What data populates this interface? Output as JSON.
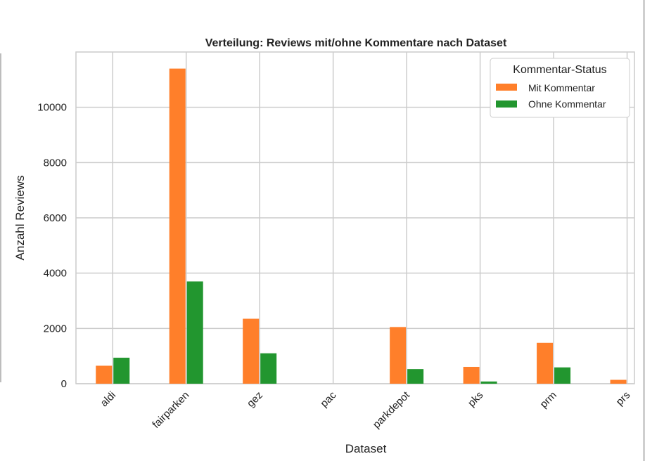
{
  "chart_data": {
    "type": "bar",
    "title": "Verteilung: Reviews mit/ohne Kommentare nach Dataset",
    "xlabel": "Dataset",
    "ylabel": "Anzahl Reviews",
    "categories": [
      "aldi",
      "fairparken",
      "gez",
      "pac",
      "parkdepot",
      "pks",
      "prm",
      "prs"
    ],
    "series": [
      {
        "name": "Mit Kommentar",
        "color": "#ff7f2a",
        "values": [
          650,
          11400,
          2350,
          0,
          2050,
          610,
          1480,
          140
        ]
      },
      {
        "name": "Ohne Kommentar",
        "color": "#22962f",
        "values": [
          940,
          3700,
          1100,
          0,
          530,
          80,
          590,
          0
        ]
      }
    ],
    "ylim": [
      0,
      12000
    ],
    "yticks": [
      0,
      2000,
      4000,
      6000,
      8000,
      10000
    ],
    "ytick_labels": [
      "0",
      "2000",
      "4000",
      "6000",
      "8000",
      "10000"
    ],
    "grid": true,
    "legend": {
      "title": "Kommentar-Status",
      "placement": "top-right"
    }
  }
}
